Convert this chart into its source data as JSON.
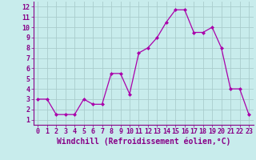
{
  "x": [
    0,
    1,
    2,
    3,
    4,
    5,
    6,
    7,
    8,
    9,
    10,
    11,
    12,
    13,
    14,
    15,
    16,
    17,
    18,
    19,
    20,
    21,
    22,
    23
  ],
  "y": [
    3.0,
    3.0,
    1.5,
    1.5,
    1.5,
    3.0,
    2.5,
    2.5,
    5.5,
    5.5,
    3.5,
    7.5,
    8.0,
    9.0,
    10.5,
    11.7,
    11.7,
    9.5,
    9.5,
    10.0,
    8.0,
    4.0,
    4.0,
    1.5
  ],
  "line_color": "#aa00aa",
  "marker": "D",
  "marker_size": 2,
  "bg_color": "#c8ecec",
  "grid_color": "#aacccc",
  "xlabel": "Windchill (Refroidissement éolien,°C)",
  "xlabel_fontsize": 7,
  "xtick_labels": [
    "0",
    "1",
    "2",
    "3",
    "4",
    "5",
    "6",
    "7",
    "8",
    "9",
    "10",
    "11",
    "12",
    "13",
    "14",
    "15",
    "16",
    "17",
    "18",
    "19",
    "20",
    "21",
    "22",
    "23"
  ],
  "ytick_labels": [
    "1",
    "2",
    "3",
    "4",
    "5",
    "6",
    "7",
    "8",
    "9",
    "10",
    "11",
    "12"
  ],
  "ylim": [
    0.5,
    12.5
  ],
  "xlim": [
    -0.5,
    23.5
  ],
  "tick_fontsize": 6,
  "label_color": "#880088"
}
